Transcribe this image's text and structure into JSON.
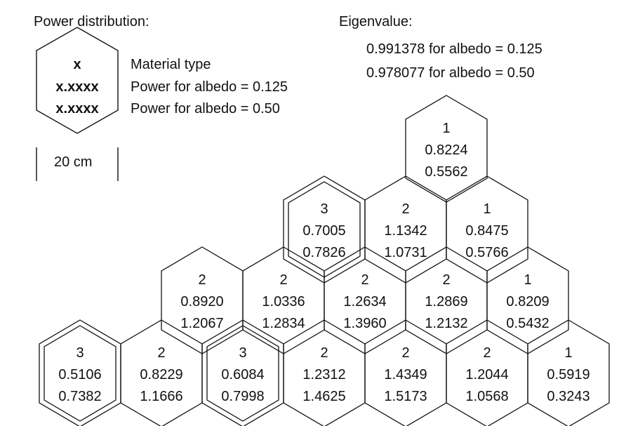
{
  "legend": {
    "title": "Power distribution:",
    "key_lines": [
      "x",
      "x.xxxx",
      "x.xxxx"
    ],
    "key_labels": [
      "Material type",
      "Power for albedo = 0.125",
      "Power for albedo = 0.50"
    ],
    "scale_label": "20 cm"
  },
  "eigenvalue": {
    "title": "Eigenvalue:",
    "lines": [
      "0.991378 for albedo = 0.125",
      "0.978077 for albedo = 0.50"
    ]
  },
  "hexes": [
    {
      "type": "1",
      "p125": "0.8224",
      "p50": "0.5562",
      "double": false
    },
    {
      "type": "3",
      "p125": "0.7005",
      "p50": "0.7826",
      "double": true
    },
    {
      "type": "2",
      "p125": "1.1342",
      "p50": "1.0731",
      "double": false
    },
    {
      "type": "1",
      "p125": "0.8475",
      "p50": "0.5766",
      "double": false
    },
    {
      "type": "2",
      "p125": "0.8920",
      "p50": "1.2067",
      "double": false
    },
    {
      "type": "2",
      "p125": "1.0336",
      "p50": "1.2834",
      "double": false
    },
    {
      "type": "2",
      "p125": "1.2634",
      "p50": "1.3960",
      "double": false
    },
    {
      "type": "2",
      "p125": "1.2869",
      "p50": "1.2132",
      "double": false
    },
    {
      "type": "1",
      "p125": "0.8209",
      "p50": "0.5432",
      "double": false
    },
    {
      "type": "3",
      "p125": "0.5106",
      "p50": "0.7382",
      "double": true
    },
    {
      "type": "2",
      "p125": "0.8229",
      "p50": "1.1666",
      "double": false
    },
    {
      "type": "3",
      "p125": "0.6084",
      "p50": "0.7998",
      "double": true
    },
    {
      "type": "2",
      "p125": "1.2312",
      "p50": "1.4625",
      "double": false
    },
    {
      "type": "2",
      "p125": "1.4349",
      "p50": "1.5173",
      "double": false
    },
    {
      "type": "2",
      "p125": "1.2044",
      "p50": "1.0568",
      "double": false
    },
    {
      "type": "1",
      "p125": "0.5919",
      "p50": "0.3243",
      "double": false
    }
  ]
}
